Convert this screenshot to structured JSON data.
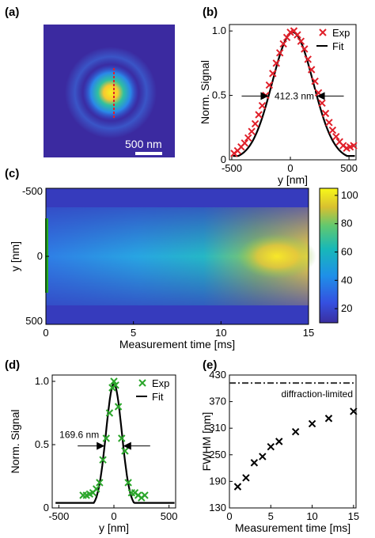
{
  "chart_data": [
    {
      "panel": "(a)",
      "type": "heatmap",
      "scale_bar_label": "500 nm",
      "colors": {
        "line_cut": "#e0202a",
        "scale_bar": "#ffffff"
      }
    },
    {
      "panel": "(b)",
      "type": "scatter",
      "xlabel": "y [nm]",
      "ylabel": "Norm. Signal",
      "xlim": [
        -520,
        560
      ],
      "ylim": [
        0,
        1.05
      ],
      "xticks": [
        "-500",
        "0",
        "500"
      ],
      "yticks": [
        "0",
        "0.5",
        "1.0"
      ],
      "legend": [
        "Exp",
        "Fit"
      ],
      "legend_position": "top-right",
      "annotation": "412.3 nm",
      "fwhm_nm": 412.3,
      "series": [
        {
          "name": "Exp",
          "marker": "x",
          "color": "#e0202a",
          "x": [
            -480,
            -450,
            -420,
            -390,
            -360,
            -330,
            -300,
            -270,
            -240,
            -210,
            -180,
            -150,
            -120,
            -90,
            -60,
            -30,
            0,
            30,
            60,
            90,
            120,
            150,
            180,
            210,
            240,
            270,
            300,
            330,
            360,
            390,
            420,
            450,
            480,
            510,
            540
          ],
          "y": [
            0.05,
            0.07,
            0.1,
            0.13,
            0.17,
            0.22,
            0.28,
            0.35,
            0.42,
            0.5,
            0.58,
            0.67,
            0.75,
            0.83,
            0.9,
            0.95,
            0.99,
            1.0,
            0.97,
            0.92,
            0.86,
            0.78,
            0.7,
            0.61,
            0.52,
            0.44,
            0.36,
            0.29,
            0.23,
            0.18,
            0.14,
            0.11,
            0.09,
            0.1,
            0.11
          ]
        },
        {
          "name": "Fit",
          "type": "line",
          "color": "#000000",
          "center": 20,
          "fwhm": 412.3,
          "amplitude": 0.99
        }
      ]
    },
    {
      "panel": "(c)",
      "type": "heatmap",
      "xlabel": "Measurement time [ms]",
      "ylabel": "y [nm]",
      "xlim": [
        0,
        15
      ],
      "ylim": [
        -500,
        500
      ],
      "xticks": [
        "0",
        "5",
        "10",
        "15"
      ],
      "yticks": [
        "-500",
        "0",
        "500"
      ],
      "colorbar_ticks": [
        "20",
        "40",
        "60",
        "80",
        "100"
      ],
      "colorbar_range": [
        10,
        105
      ],
      "colors": {
        "marker_bar": "#22aa22"
      }
    },
    {
      "panel": "(d)",
      "type": "scatter",
      "xlabel": "y [nm]",
      "ylabel": "Norm. Signal",
      "xlim": [
        -560,
        560
      ],
      "ylim": [
        0,
        1.05
      ],
      "xticks": [
        "-500",
        "0",
        "500"
      ],
      "yticks": [
        "0",
        "0.5",
        "1.0"
      ],
      "legend": [
        "Exp",
        "Fit"
      ],
      "legend_position": "top-right",
      "annotation": "169.6 nm",
      "fwhm_nm": 169.6,
      "series": [
        {
          "name": "Exp",
          "marker": "x",
          "color": "#2aa52a",
          "x": [
            -280,
            -250,
            -220,
            -190,
            -160,
            -130,
            -100,
            -70,
            -40,
            -15,
            0,
            15,
            40,
            70,
            100,
            130,
            160,
            190,
            220,
            250,
            280
          ],
          "y": [
            0.1,
            0.1,
            0.11,
            0.12,
            0.15,
            0.2,
            0.38,
            0.55,
            0.75,
            0.95,
            1.0,
            0.97,
            0.8,
            0.55,
            0.45,
            0.2,
            0.12,
            0.12,
            0.1,
            0.08,
            0.1
          ]
        },
        {
          "name": "Fit",
          "type": "line",
          "color": "#000000",
          "center": 0,
          "fwhm": 169.6,
          "amplitude": 0.98
        }
      ]
    },
    {
      "panel": "(e)",
      "type": "scatter",
      "xlabel": "Measurement time [ms]",
      "ylabel": "FWHM [nm]",
      "xlim": [
        0,
        15.3
      ],
      "ylim": [
        130,
        430
      ],
      "xticks": [
        "0",
        "5",
        "10",
        "15"
      ],
      "yticks": [
        "130",
        "190",
        "250",
        "310",
        "370",
        "430"
      ],
      "annotation": "diffraction-limited",
      "diffraction_limit_nm": 412,
      "series": [
        {
          "name": "",
          "marker": "x",
          "color": "#000000",
          "x": [
            1,
            2,
            3,
            4,
            5,
            6,
            8,
            10,
            12,
            15
          ],
          "y": [
            178,
            198,
            232,
            246,
            268,
            280,
            302,
            320,
            332,
            348
          ]
        }
      ]
    }
  ]
}
